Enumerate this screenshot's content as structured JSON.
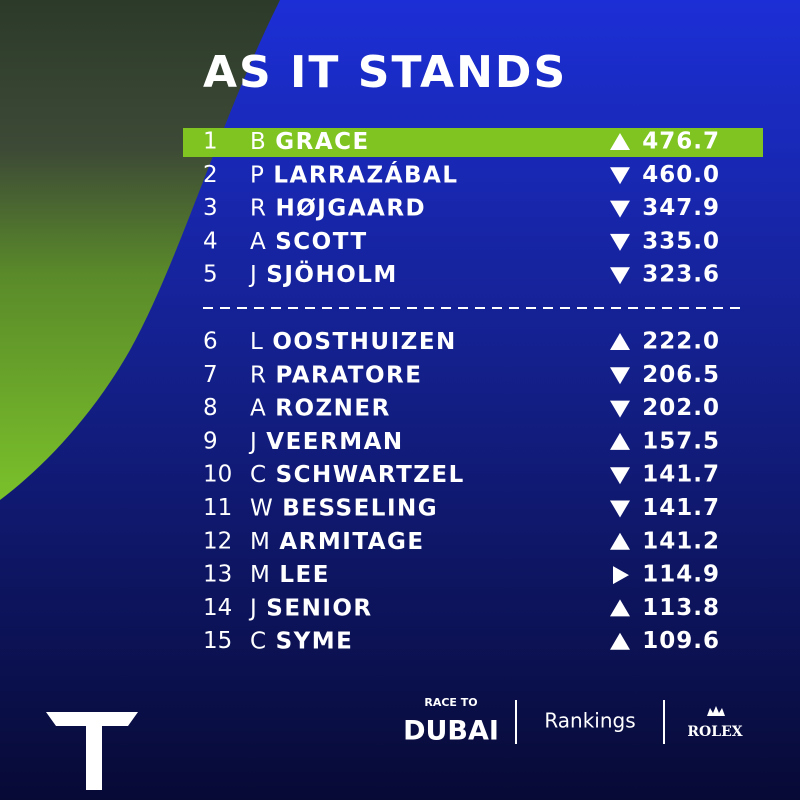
{
  "header": {
    "title": "AS IT STANDS"
  },
  "table": {
    "highlight_row": 0,
    "separator_after": 4,
    "rows": [
      {
        "pos": "1",
        "initial": "B",
        "surname": "GRACE",
        "trend": "up",
        "points": "476.7"
      },
      {
        "pos": "2",
        "initial": "P",
        "surname": "LARRAZÁBAL",
        "trend": "down",
        "points": "460.0"
      },
      {
        "pos": "3",
        "initial": "R",
        "surname": "HØJGAARD",
        "trend": "down",
        "points": "347.9"
      },
      {
        "pos": "4",
        "initial": "A",
        "surname": "SCOTT",
        "trend": "down",
        "points": "335.0"
      },
      {
        "pos": "5",
        "initial": "J",
        "surname": "SJÖHOLM",
        "trend": "down",
        "points": "323.6"
      },
      {
        "pos": "6",
        "initial": "L",
        "surname": "OOSTHUIZEN",
        "trend": "up",
        "points": "222.0"
      },
      {
        "pos": "7",
        "initial": "R",
        "surname": "PARATORE",
        "trend": "down",
        "points": "206.5"
      },
      {
        "pos": "8",
        "initial": "A",
        "surname": "ROZNER",
        "trend": "down",
        "points": "202.0"
      },
      {
        "pos": "9",
        "initial": "J",
        "surname": "VEERMAN",
        "trend": "up",
        "points": "157.5"
      },
      {
        "pos": "10",
        "initial": "C",
        "surname": "SCHWARTZEL",
        "trend": "down",
        "points": "141.7"
      },
      {
        "pos": "11",
        "initial": "W",
        "surname": "BESSELING",
        "trend": "down",
        "points": "141.7"
      },
      {
        "pos": "12",
        "initial": "M",
        "surname": "ARMITAGE",
        "trend": "up",
        "points": "141.2"
      },
      {
        "pos": "13",
        "initial": "M",
        "surname": "LEE",
        "trend": "same",
        "points": "114.9"
      },
      {
        "pos": "14",
        "initial": "J",
        "surname": "SENIOR",
        "trend": "up",
        "points": "113.8"
      },
      {
        "pos": "15",
        "initial": "C",
        "surname": "SYME",
        "trend": "up",
        "points": "109.6"
      }
    ]
  },
  "footer": {
    "logo_top": "RACE TO",
    "logo_main": "DUBAI",
    "label": "Rankings",
    "sponsor": "ROLEX"
  }
}
